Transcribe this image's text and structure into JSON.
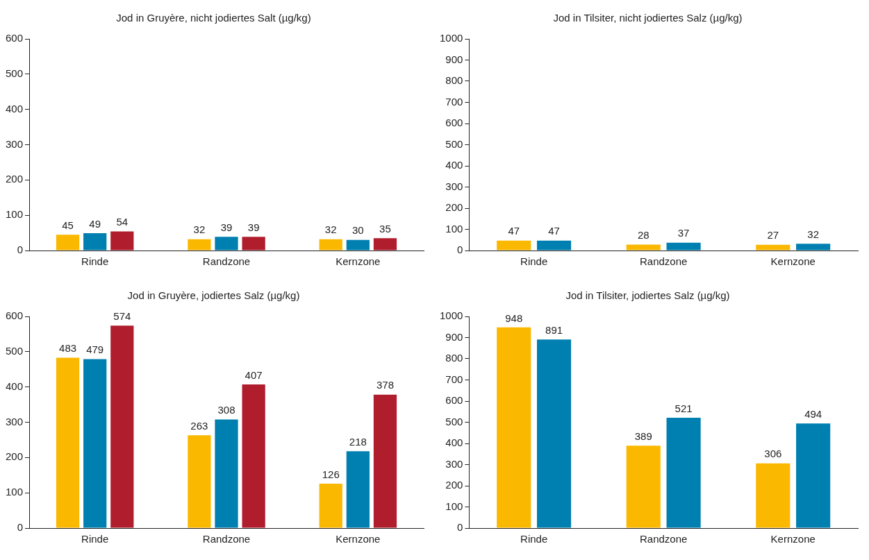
{
  "chart_data": [
    {
      "type": "bar",
      "title": "Jod in Gruyère, nicht jodiertes Salt (µg/kg)",
      "categories": [
        "Rinde",
        "Randzone",
        "Kernzone"
      ],
      "series": [
        {
          "color": "#fbb800",
          "values": [
            45,
            32,
            32
          ]
        },
        {
          "color": "#0080b0",
          "values": [
            49,
            39,
            30
          ]
        },
        {
          "color": "#b01e2e",
          "values": [
            54,
            39,
            35
          ]
        }
      ],
      "ylim": [
        0,
        600
      ],
      "yticks": [
        0,
        100,
        200,
        300,
        400,
        500,
        600
      ],
      "data_labels": true,
      "grid": false,
      "legend": false
    },
    {
      "type": "bar",
      "title": "Jod in Tilsiter, nicht jodiertes Salz (µg/kg)",
      "categories": [
        "Rinde",
        "Randzone",
        "Kernzone"
      ],
      "series": [
        {
          "color": "#fbb800",
          "values": [
            47,
            28,
            27
          ]
        },
        {
          "color": "#0080b0",
          "values": [
            47,
            37,
            32
          ]
        }
      ],
      "ylim": [
        0,
        1000
      ],
      "yticks": [
        0,
        100,
        200,
        300,
        400,
        500,
        600,
        700,
        800,
        900,
        1000
      ],
      "data_labels": true,
      "grid": false,
      "legend": false
    },
    {
      "type": "bar",
      "title": "Jod in Gruyère, jodiertes Salz (µg/kg)",
      "categories": [
        "Rinde",
        "Randzone",
        "Kernzone"
      ],
      "series": [
        {
          "color": "#fbb800",
          "values": [
            483,
            263,
            126
          ]
        },
        {
          "color": "#0080b0",
          "values": [
            479,
            308,
            218
          ]
        },
        {
          "color": "#b01e2e",
          "values": [
            574,
            407,
            378
          ]
        }
      ],
      "ylim": [
        0,
        600
      ],
      "yticks": [
        0,
        100,
        200,
        300,
        400,
        500,
        600
      ],
      "data_labels": true,
      "grid": false,
      "legend": false
    },
    {
      "type": "bar",
      "title": "Jod in Tilsiter, jodiertes Salz (µg/kg)",
      "categories": [
        "Rinde",
        "Randzone",
        "Kernzone"
      ],
      "series": [
        {
          "color": "#fbb800",
          "values": [
            948,
            389,
            306
          ]
        },
        {
          "color": "#0080b0",
          "values": [
            891,
            521,
            494
          ]
        }
      ],
      "ylim": [
        0,
        1000
      ],
      "yticks": [
        0,
        100,
        200,
        300,
        400,
        500,
        600,
        700,
        800,
        900,
        1000
      ],
      "data_labels": true,
      "grid": false,
      "legend": false
    }
  ]
}
